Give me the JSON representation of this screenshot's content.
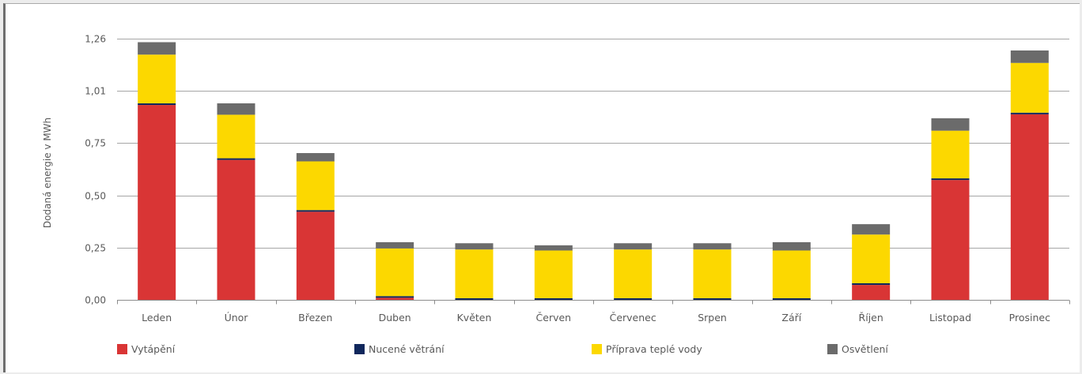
{
  "chart_data": {
    "type": "bar",
    "stacked": true,
    "ylabel": "Dodaná energie v MWh",
    "xlabel": "",
    "ylim": [
      0,
      1.26
    ],
    "yticks": [
      "0,00",
      "0,25",
      "0,50",
      "0,75",
      "1,01",
      "1,26"
    ],
    "ytick_values": [
      0,
      0.252,
      0.504,
      0.756,
      1.008,
      1.26
    ],
    "grid": true,
    "legend_position": "bottom",
    "categories": [
      "Leden",
      "Únor",
      "Březen",
      "Duben",
      "Květen",
      "Červen",
      "Červenec",
      "Srpen",
      "Září",
      "Říjen",
      "Listopad",
      "Prosinec"
    ],
    "series": [
      {
        "name": "Vytápění",
        "color": "#d93535",
        "values": [
          0.94,
          0.675,
          0.425,
          0.01,
          0.0,
          0.0,
          0.0,
          0.0,
          0.0,
          0.072,
          0.578,
          0.895
        ]
      },
      {
        "name": "Nucené větrání",
        "color": "#10275c",
        "values": [
          0.008,
          0.008,
          0.008,
          0.008,
          0.008,
          0.008,
          0.008,
          0.008,
          0.008,
          0.008,
          0.008,
          0.008
        ]
      },
      {
        "name": "Příprava teplé vody",
        "color": "#fcd800",
        "values": [
          0.235,
          0.21,
          0.235,
          0.23,
          0.235,
          0.23,
          0.235,
          0.235,
          0.23,
          0.235,
          0.23,
          0.24
        ]
      },
      {
        "name": "Osvětlení",
        "color": "#6b6b6b",
        "values": [
          0.06,
          0.055,
          0.04,
          0.03,
          0.03,
          0.025,
          0.03,
          0.03,
          0.04,
          0.05,
          0.06,
          0.06
        ]
      }
    ]
  }
}
